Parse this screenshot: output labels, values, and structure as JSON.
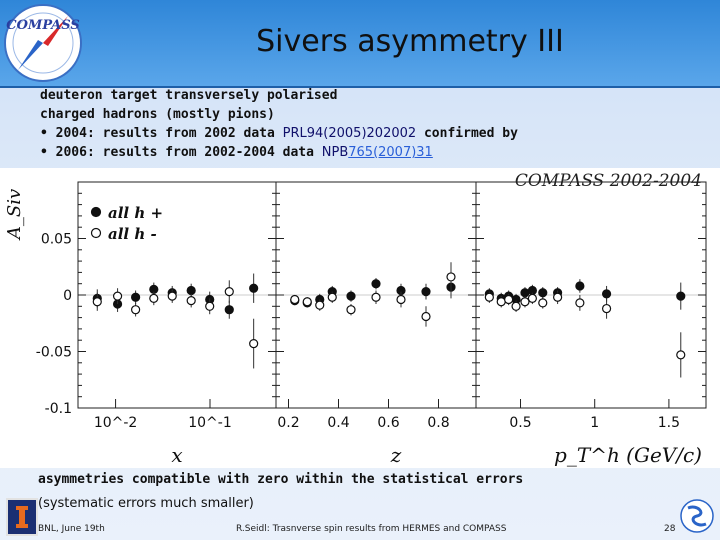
{
  "header": {
    "title": "Sivers asymmetry III",
    "logo_text": "COMPASS"
  },
  "bullets": {
    "line1": "deuteron target transversely polarised",
    "line2": "charged hadrons (mostly pions)",
    "item1_marker": "•",
    "item1_text": "2004: results from 2002 data",
    "item1_ref": "PRL94(2005)202002",
    "item1_suffix": "confirmed by",
    "item2_marker": "•",
    "item2_text": "2006: results from 2002-2004 data",
    "item2_ref_plain": "NPB",
    "item2_ref_link": "765(2007)31"
  },
  "chart_data": {
    "type": "scatter",
    "title": "COMPASS 2002-2004",
    "ylabel": "A_Siv",
    "ylim": [
      -0.1,
      0.1
    ],
    "yticks": [
      "0.05",
      "0",
      "-0.05",
      "-0.1"
    ],
    "ytick_values": [
      0.05,
      0,
      -0.05,
      -0.1
    ],
    "legend": {
      "position": "top-left",
      "entries": [
        "all h +",
        "all h -"
      ]
    },
    "panels": [
      {
        "xlabel": "x",
        "scale": "log",
        "xlim": [
          0.004,
          0.5
        ],
        "xtick_labels": [
          "10^-2",
          "10^-1"
        ],
        "xtick_values": [
          0.01,
          0.1
        ],
        "series": [
          {
            "name": "all h +",
            "x": [
              0.0064,
              0.0105,
              0.0163,
              0.0254,
              0.0398,
              0.0632,
              0.0993,
              0.16,
              0.29
            ],
            "y": [
              -0.003,
              -0.008,
              -0.002,
              0.005,
              0.002,
              0.004,
              -0.004,
              -0.013,
              0.006
            ],
            "err": [
              0.008,
              0.007,
              0.006,
              0.006,
              0.006,
              0.006,
              0.007,
              0.008,
              0.013
            ]
          },
          {
            "name": "all h -",
            "x": [
              0.0064,
              0.0105,
              0.0163,
              0.0254,
              0.0398,
              0.0632,
              0.0993,
              0.16,
              0.29
            ],
            "y": [
              -0.006,
              -0.001,
              -0.013,
              -0.003,
              -0.001,
              -0.005,
              -0.01,
              0.003,
              -0.043
            ],
            "err": [
              0.008,
              0.007,
              0.006,
              0.006,
              0.006,
              0.006,
              0.007,
              0.01,
              0.022
            ]
          }
        ]
      },
      {
        "xlabel": "z",
        "scale": "linear",
        "xlim": [
          0.15,
          0.95
        ],
        "xtick_labels": [
          "0.2",
          "0.4",
          "0.6",
          "0.8"
        ],
        "xtick_values": [
          0.2,
          0.4,
          0.6,
          0.8
        ],
        "series": [
          {
            "name": "all h +",
            "x": [
              0.225,
              0.275,
              0.325,
              0.375,
              0.45,
              0.55,
              0.65,
              0.75,
              0.85
            ],
            "y": [
              -0.005,
              -0.007,
              -0.004,
              0.003,
              -0.001,
              0.01,
              0.004,
              0.003,
              0.007
            ],
            "err": [
              0.004,
              0.004,
              0.005,
              0.005,
              0.005,
              0.005,
              0.006,
              0.007,
              0.01
            ]
          },
          {
            "name": "all h -",
            "x": [
              0.225,
              0.275,
              0.325,
              0.375,
              0.45,
              0.55,
              0.65,
              0.75,
              0.85
            ],
            "y": [
              -0.004,
              -0.006,
              -0.009,
              -0.002,
              -0.013,
              -0.002,
              -0.004,
              -0.019,
              0.016
            ],
            "err": [
              0.004,
              0.004,
              0.005,
              0.005,
              0.005,
              0.006,
              0.007,
              0.009,
              0.013
            ]
          }
        ]
      },
      {
        "xlabel": "p_T^h (GeV/c)",
        "scale": "linear",
        "xlim": [
          0.2,
          1.75
        ],
        "xtick_labels": [
          "0.5",
          "1",
          "1.5"
        ],
        "xtick_values": [
          0.5,
          1,
          1.5
        ],
        "series": [
          {
            "name": "all h +",
            "x": [
              0.29,
              0.37,
              0.42,
              0.47,
              0.53,
              0.58,
              0.65,
              0.75,
              0.9,
              1.08,
              1.58
            ],
            "y": [
              0.001,
              -0.003,
              -0.001,
              -0.004,
              0.002,
              0.004,
              0.002,
              0.002,
              0.008,
              0.001,
              -0.001
            ],
            "err": [
              0.005,
              0.005,
              0.005,
              0.005,
              0.005,
              0.005,
              0.005,
              0.005,
              0.006,
              0.007,
              0.012
            ]
          },
          {
            "name": "all h -",
            "x": [
              0.29,
              0.37,
              0.42,
              0.47,
              0.53,
              0.58,
              0.65,
              0.75,
              0.9,
              1.08,
              1.58
            ],
            "y": [
              -0.002,
              -0.006,
              -0.004,
              -0.01,
              -0.006,
              -0.003,
              -0.007,
              -0.002,
              -0.007,
              -0.012,
              -0.053
            ],
            "err": [
              0.005,
              0.005,
              0.005,
              0.005,
              0.005,
              0.005,
              0.005,
              0.006,
              0.007,
              0.009,
              0.02
            ]
          }
        ]
      }
    ]
  },
  "footer": {
    "line1": "asymmetries compatible with zero within the statistical errors",
    "line2": "(systematic errors much smaller)",
    "event": "BNL, June 19th",
    "speaker": "R.Seidl: Trasnverse spin results from HERMES and COMPASS",
    "page": "28"
  },
  "colors": {
    "header": "#2f86d8",
    "text": "#101010",
    "link": "#2a5fd8"
  }
}
